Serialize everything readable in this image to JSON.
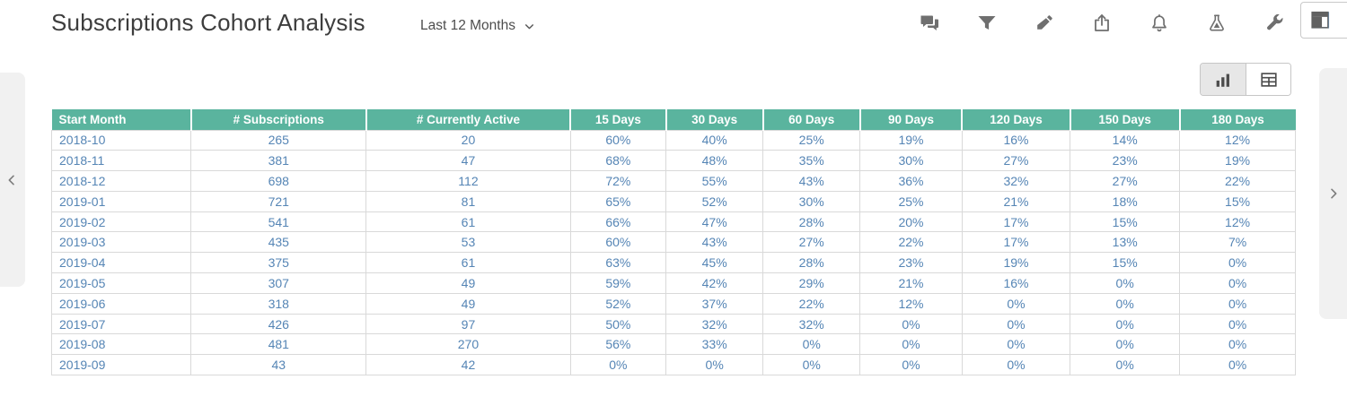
{
  "header": {
    "title": "Subscriptions Cohort Analysis",
    "date_range": "Last 12 Months",
    "toolbar_icons": [
      "comments-icon",
      "filter-icon",
      "pen-icon",
      "share-icon",
      "bell-icon",
      "flask-icon",
      "wrench-icon"
    ],
    "layout_button_icon": "layout-icon"
  },
  "view_toggle": {
    "active": "chart",
    "options": [
      {
        "id": "chart",
        "icon": "bar-chart-icon"
      },
      {
        "id": "table",
        "icon": "table-grid-icon"
      }
    ]
  },
  "nav": {
    "prev_icon": "chevron-left-icon",
    "next_icon": "chevron-right-icon"
  },
  "colors": {
    "accent_green": "#5ab49e",
    "data_text_blue": "#5585b5",
    "grid_border": "#d9d9d9",
    "icon_gray": "#6f6f6f"
  },
  "table": {
    "columns": [
      "Start Month",
      "# Subscriptions",
      "# Currently Active",
      "15 Days",
      "30 Days",
      "60 Days",
      "90 Days",
      "120 Days",
      "150 Days",
      "180 Days"
    ],
    "rows": [
      [
        "2018-10",
        "265",
        "20",
        "60%",
        "40%",
        "25%",
        "19%",
        "16%",
        "14%",
        "12%"
      ],
      [
        "2018-11",
        "381",
        "47",
        "68%",
        "48%",
        "35%",
        "30%",
        "27%",
        "23%",
        "19%"
      ],
      [
        "2018-12",
        "698",
        "112",
        "72%",
        "55%",
        "43%",
        "36%",
        "32%",
        "27%",
        "22%"
      ],
      [
        "2019-01",
        "721",
        "81",
        "65%",
        "52%",
        "30%",
        "25%",
        "21%",
        "18%",
        "15%"
      ],
      [
        "2019-02",
        "541",
        "61",
        "66%",
        "47%",
        "28%",
        "20%",
        "17%",
        "15%",
        "12%"
      ],
      [
        "2019-03",
        "435",
        "53",
        "60%",
        "43%",
        "27%",
        "22%",
        "17%",
        "13%",
        "7%"
      ],
      [
        "2019-04",
        "375",
        "61",
        "63%",
        "45%",
        "28%",
        "23%",
        "19%",
        "15%",
        "0%"
      ],
      [
        "2019-05",
        "307",
        "49",
        "59%",
        "42%",
        "29%",
        "21%",
        "16%",
        "0%",
        "0%"
      ],
      [
        "2019-06",
        "318",
        "49",
        "52%",
        "37%",
        "22%",
        "12%",
        "0%",
        "0%",
        "0%"
      ],
      [
        "2019-07",
        "426",
        "97",
        "50%",
        "32%",
        "32%",
        "0%",
        "0%",
        "0%",
        "0%"
      ],
      [
        "2019-08",
        "481",
        "270",
        "56%",
        "33%",
        "0%",
        "0%",
        "0%",
        "0%",
        "0%"
      ],
      [
        "2019-09",
        "43",
        "42",
        "0%",
        "0%",
        "0%",
        "0%",
        "0%",
        "0%",
        "0%"
      ]
    ]
  }
}
